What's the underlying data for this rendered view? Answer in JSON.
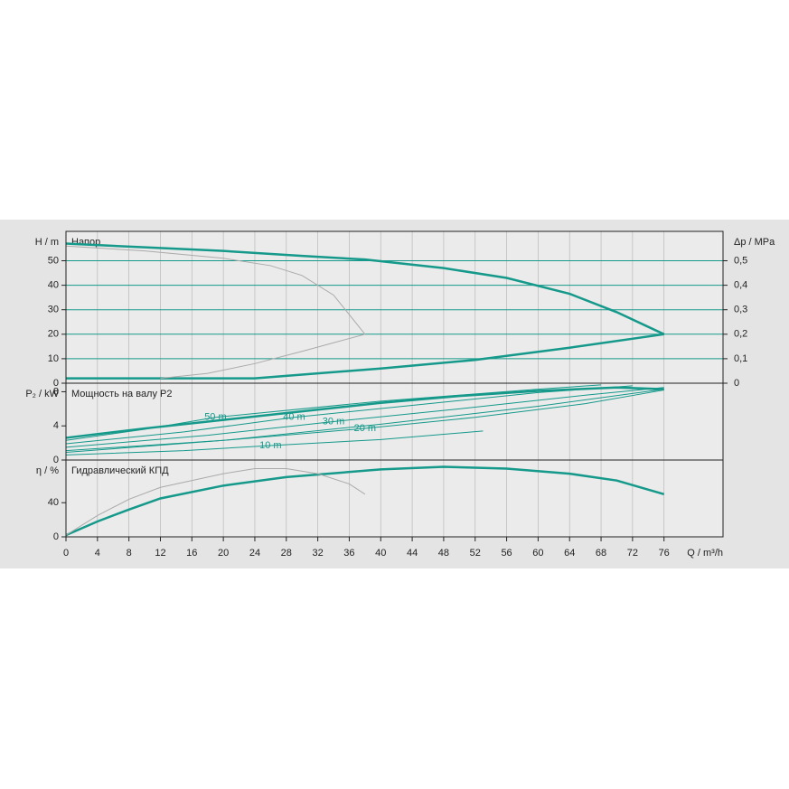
{
  "chart_data": [
    {
      "type": "line",
      "title": "Напор",
      "y_label": "H / m",
      "y2_label": "Δp / MPa",
      "xlim": [
        0,
        83.5
      ],
      "ylim": [
        0,
        62
      ],
      "yticks": [
        0,
        10,
        20,
        30,
        40,
        50
      ],
      "y2lim": [
        0,
        0.62
      ],
      "y2ticks": [
        0,
        {
          "value": 0.1,
          "label": "0,1"
        },
        {
          "value": 0.2,
          "label": "0,2"
        },
        {
          "value": 0.3,
          "label": "0,3"
        },
        {
          "value": 0.4,
          "label": "0,4"
        },
        {
          "value": 0.5,
          "label": "0,5"
        }
      ],
      "grid": true,
      "grid_color": "#14998a",
      "series": [
        {
          "color": "#14998a",
          "linewidth": 2.5,
          "x": [
            0,
            10,
            20,
            30,
            38,
            48,
            56,
            64,
            70,
            76
          ],
          "values": [
            57,
            55.5,
            54,
            52,
            50.5,
            47,
            43,
            36.5,
            29,
            20
          ]
        },
        {
          "color": "#14998a",
          "linewidth": 2.5,
          "x": [
            0,
            12,
            24,
            32,
            40,
            52,
            64,
            76
          ],
          "values": [
            2,
            2,
            2,
            4,
            6,
            9.5,
            14.5,
            20
          ]
        },
        {
          "color": "#aaaaaa",
          "linewidth": 1,
          "x": [
            0,
            10,
            20,
            26,
            30,
            34,
            38,
            34,
            30,
            24,
            18,
            12
          ],
          "values": [
            56,
            54,
            51,
            48,
            44,
            36,
            20,
            16.5,
            13,
            8,
            4,
            2
          ]
        }
      ]
    },
    {
      "type": "line",
      "title": "Мощность на валу P2",
      "y_label": "P₂ / kW",
      "xlim": [
        0,
        83.5
      ],
      "ylim": [
        0,
        9
      ],
      "yticks": [
        0,
        4,
        8
      ],
      "series": [
        {
          "color": "#14998a",
          "linewidth": 2.5,
          "x": [
            0,
            10,
            20,
            30,
            40,
            50,
            60,
            70,
            76
          ],
          "values": [
            2.6,
            3.7,
            4.7,
            5.7,
            6.7,
            7.5,
            8.1,
            8.5,
            8.3
          ]
        },
        {
          "color": "#14998a",
          "linewidth": 1,
          "x": [
            0,
            20,
            40,
            60,
            76
          ],
          "values": [
            0.9,
            2.3,
            4.2,
            6.3,
            8.3
          ]
        },
        {
          "name": "50 m",
          "color": "#14998a",
          "linewidth": 1,
          "x": [
            0,
            10,
            19,
            40,
            60,
            68
          ],
          "values": [
            2.3,
            3.6,
            5.0,
            6.9,
            8.3,
            8.8
          ]
        },
        {
          "name": "40 m",
          "color": "#14998a",
          "linewidth": 1,
          "x": [
            0,
            15,
            29,
            45,
            60,
            72
          ],
          "values": [
            1.9,
            3.3,
            5.0,
            6.5,
            7.9,
            8.7
          ]
        },
        {
          "name": "30 m",
          "color": "#14998a",
          "linewidth": 1,
          "x": [
            0,
            18,
            34,
            50,
            66,
            76
          ],
          "values": [
            1.5,
            2.9,
            4.5,
            6.0,
            7.6,
            8.5
          ]
        },
        {
          "name": "20 m",
          "color": "#14998a",
          "linewidth": 1,
          "x": [
            0,
            20,
            38,
            52,
            66,
            76
          ],
          "values": [
            1.1,
            2.3,
            3.7,
            5.0,
            6.6,
            8.2
          ]
        },
        {
          "name": "10 m",
          "color": "#14998a",
          "linewidth": 1,
          "x": [
            0,
            15,
            26,
            40,
            53
          ],
          "values": [
            0.6,
            1.1,
            1.7,
            2.4,
            3.4
          ]
        }
      ]
    },
    {
      "type": "line",
      "title": "Гидравлический КПД",
      "y_label": "η / %",
      "x_label": "Q / m³/h",
      "xlim": [
        0,
        83.5
      ],
      "ylim": [
        0,
        90
      ],
      "yticks": [
        0,
        40
      ],
      "xticks": [
        0,
        4,
        8,
        12,
        16,
        20,
        24,
        28,
        32,
        36,
        40,
        44,
        48,
        52,
        56,
        60,
        64,
        68,
        72,
        76
      ],
      "series": [
        {
          "color": "#14998a",
          "linewidth": 2.5,
          "x": [
            0,
            4,
            8,
            12,
            20,
            28,
            40,
            48,
            56,
            64,
            70,
            76
          ],
          "values": [
            2,
            18,
            32,
            45,
            60,
            70,
            79,
            82,
            80,
            74,
            66,
            50
          ]
        },
        {
          "color": "#aaaaaa",
          "linewidth": 1,
          "x": [
            0,
            4,
            8,
            12,
            20,
            24,
            28,
            32,
            36,
            38
          ],
          "values": [
            2,
            25,
            44,
            58,
            74,
            80,
            80,
            74,
            62,
            50
          ]
        }
      ]
    }
  ]
}
